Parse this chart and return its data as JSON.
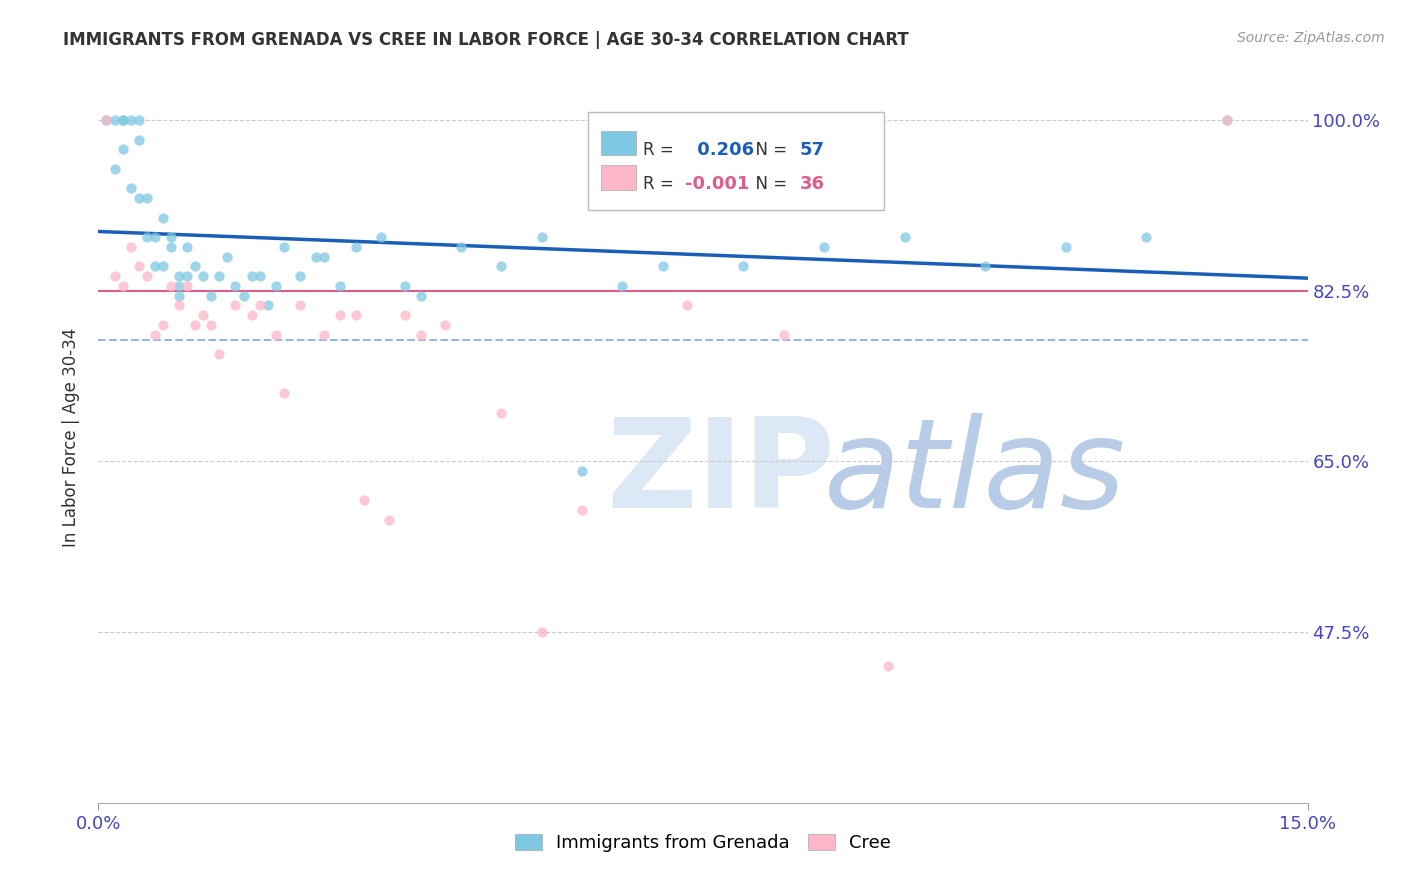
{
  "title": "IMMIGRANTS FROM GRENADA VS CREE IN LABOR FORCE | AGE 30-34 CORRELATION CHART",
  "source_text": "Source: ZipAtlas.com",
  "ylabel": "In Labor Force | Age 30-34",
  "xlim": [
    0.0,
    0.15
  ],
  "ylim": [
    0.3,
    1.05
  ],
  "yticks": [
    0.475,
    0.65,
    0.825,
    1.0
  ],
  "ytick_labels": [
    "47.5%",
    "65.0%",
    "82.5%",
    "100.0%"
  ],
  "xtick_labels": [
    "0.0%",
    "15.0%"
  ],
  "xticks": [
    0.0,
    0.15
  ],
  "legend_labels": [
    "Immigrants from Grenada",
    "Cree"
  ],
  "r_grenada": 0.206,
  "n_grenada": 57,
  "r_cree": -0.001,
  "n_cree": 36,
  "blue_color": "#7ec8e3",
  "pink_color": "#ffb6c8",
  "trendline_blue": "#1a5eb8",
  "trendline_dashed": "#99b8d8",
  "hline_color": "#e05c8a",
  "hline_y": 0.825,
  "axis_color": "#4444cc",
  "grenada_x": [
    0.001,
    0.002,
    0.002,
    0.003,
    0.003,
    0.003,
    0.004,
    0.004,
    0.005,
    0.005,
    0.005,
    0.006,
    0.006,
    0.007,
    0.007,
    0.008,
    0.008,
    0.009,
    0.009,
    0.01,
    0.01,
    0.01,
    0.011,
    0.011,
    0.012,
    0.013,
    0.014,
    0.015,
    0.016,
    0.017,
    0.018,
    0.019,
    0.02,
    0.021,
    0.022,
    0.023,
    0.025,
    0.027,
    0.028,
    0.03,
    0.032,
    0.035,
    0.038,
    0.04,
    0.045,
    0.05,
    0.055,
    0.06,
    0.065,
    0.07,
    0.08,
    0.09,
    0.1,
    0.11,
    0.12,
    0.13,
    0.14
  ],
  "grenada_y": [
    1.0,
    1.0,
    0.95,
    1.0,
    1.0,
    0.97,
    1.0,
    0.93,
    1.0,
    0.98,
    0.92,
    0.88,
    0.92,
    0.85,
    0.88,
    0.85,
    0.9,
    0.87,
    0.88,
    0.84,
    0.83,
    0.82,
    0.87,
    0.84,
    0.85,
    0.84,
    0.82,
    0.84,
    0.86,
    0.83,
    0.82,
    0.84,
    0.84,
    0.81,
    0.83,
    0.87,
    0.84,
    0.86,
    0.86,
    0.83,
    0.87,
    0.88,
    0.83,
    0.82,
    0.87,
    0.85,
    0.88,
    0.64,
    0.83,
    0.85,
    0.85,
    0.87,
    0.88,
    0.85,
    0.87,
    0.88,
    1.0
  ],
  "cree_x": [
    0.001,
    0.002,
    0.003,
    0.004,
    0.005,
    0.006,
    0.007,
    0.008,
    0.009,
    0.01,
    0.011,
    0.012,
    0.013,
    0.014,
    0.015,
    0.017,
    0.019,
    0.02,
    0.022,
    0.023,
    0.025,
    0.028,
    0.03,
    0.032,
    0.033,
    0.036,
    0.038,
    0.04,
    0.043,
    0.05,
    0.055,
    0.06,
    0.073,
    0.085,
    0.098,
    0.14
  ],
  "cree_y": [
    1.0,
    0.84,
    0.83,
    0.87,
    0.85,
    0.84,
    0.78,
    0.79,
    0.83,
    0.81,
    0.83,
    0.79,
    0.8,
    0.79,
    0.76,
    0.81,
    0.8,
    0.81,
    0.78,
    0.72,
    0.81,
    0.78,
    0.8,
    0.8,
    0.61,
    0.59,
    0.8,
    0.78,
    0.79,
    0.7,
    0.475,
    0.6,
    0.81,
    0.78,
    0.44,
    1.0
  ]
}
